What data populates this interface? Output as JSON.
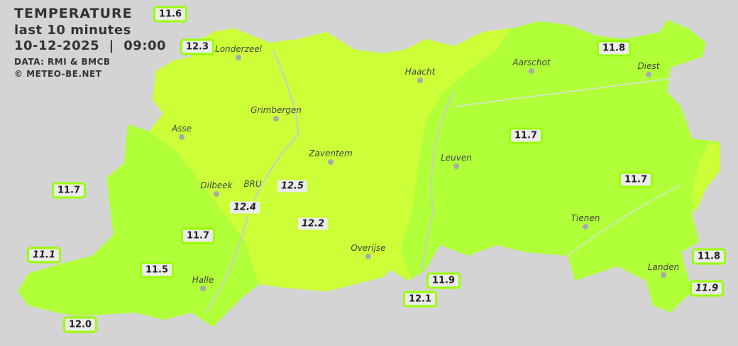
{
  "header": {
    "title": "TEMPERATURE",
    "subtitle": "last 10 minutes",
    "datetime": "10-12-2025  |  09:00",
    "source": "DATA: RMI & BMCB",
    "credit": "© METEO-BE.NET"
  },
  "colors": {
    "background": "#d4d4d4",
    "zone_12": "#ccff38",
    "zone_11_5": "#b0ff38",
    "label_border": "#99ff00"
  },
  "stations": [
    "11.6",
    "12.3",
    "11.8",
    "11.7",
    "11.7",
    "11.7",
    "11.7",
    "11.1",
    "11.5",
    "12.0",
    "12.5",
    "12.4",
    "12.2",
    "11.9",
    "12.1",
    "11.8",
    "11.9"
  ],
  "towns": [
    "Londerzeel",
    "Haacht",
    "Aarschot",
    "Diest",
    "Grimbergen",
    "Asse",
    "Zaventem",
    "Leuven",
    "Dilbeek",
    "BRU",
    "Tienen",
    "Overijse",
    "Halle",
    "Landen"
  ]
}
